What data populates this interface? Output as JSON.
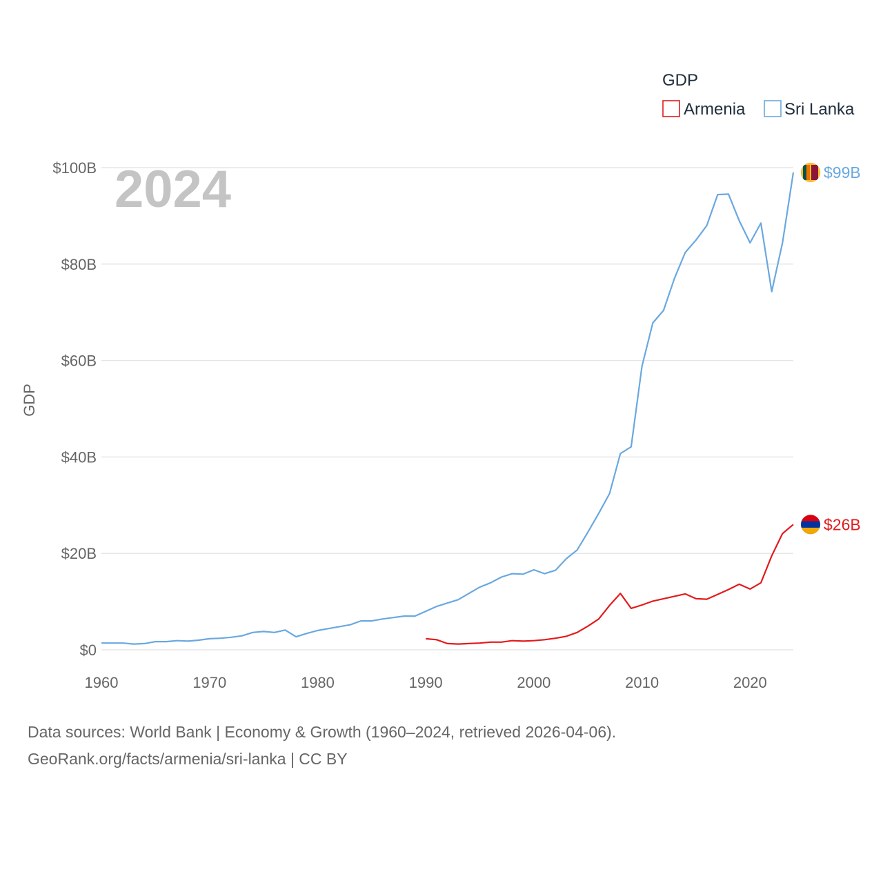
{
  "chart_data": {
    "type": "line",
    "ylabel": "GDP",
    "xlabel": "",
    "xlim": [
      1960,
      2024
    ],
    "ylim": [
      0,
      100
    ],
    "x_ticks": [
      1960,
      1970,
      1980,
      1990,
      2000,
      2010,
      2020
    ],
    "x_tick_labels": [
      "1960",
      "1970",
      "1980",
      "1990",
      "2000",
      "2010",
      "2020"
    ],
    "y_ticks": [
      0,
      20,
      40,
      60,
      80,
      100
    ],
    "y_tick_labels": [
      "$0",
      "$20B",
      "$40B",
      "$60B",
      "$80B",
      "$100B"
    ],
    "grid": true,
    "year_label": "2024",
    "legend": {
      "title": "GDP",
      "position": "top-right",
      "entries": [
        "Armenia",
        "Sri Lanka"
      ]
    },
    "series": [
      {
        "name": "Armenia",
        "color": "#e31a1c",
        "end_label": "$26B",
        "flag_colors": [
          "#d90012",
          "#0033a0",
          "#f2a800"
        ],
        "x": [
          1990,
          1991,
          1992,
          1993,
          1994,
          1995,
          1996,
          1997,
          1998,
          1999,
          2000,
          2001,
          2002,
          2003,
          2004,
          2005,
          2006,
          2007,
          2008,
          2009,
          2010,
          2011,
          2012,
          2013,
          2014,
          2015,
          2016,
          2017,
          2018,
          2019,
          2020,
          2021,
          2022,
          2023,
          2024
        ],
        "values": [
          2.3,
          2.1,
          1.3,
          1.2,
          1.3,
          1.4,
          1.6,
          1.6,
          1.9,
          1.8,
          1.9,
          2.1,
          2.4,
          2.8,
          3.6,
          4.9,
          6.4,
          9.2,
          11.7,
          8.6,
          9.3,
          10.1,
          10.6,
          11.1,
          11.6,
          10.6,
          10.5,
          11.5,
          12.5,
          13.6,
          12.6,
          13.9,
          19.5,
          24.1,
          26.0
        ]
      },
      {
        "name": "Sri Lanka",
        "color": "#69a8e0",
        "end_label": "$99B",
        "flag_colors": [
          "#eb7400",
          "#00534e",
          "#8d153a",
          "#ffbe29"
        ],
        "x": [
          1960,
          1961,
          1962,
          1963,
          1964,
          1965,
          1966,
          1967,
          1968,
          1969,
          1970,
          1971,
          1972,
          1973,
          1974,
          1975,
          1976,
          1977,
          1978,
          1979,
          1980,
          1981,
          1982,
          1983,
          1984,
          1985,
          1986,
          1987,
          1988,
          1989,
          1990,
          1991,
          1992,
          1993,
          1994,
          1995,
          1996,
          1997,
          1998,
          1999,
          2000,
          2001,
          2002,
          2003,
          2004,
          2005,
          2006,
          2007,
          2008,
          2009,
          2010,
          2011,
          2012,
          2013,
          2014,
          2015,
          2016,
          2017,
          2018,
          2019,
          2020,
          2021,
          2022,
          2023,
          2024
        ],
        "values": [
          1.4,
          1.4,
          1.4,
          1.2,
          1.3,
          1.7,
          1.7,
          1.9,
          1.8,
          2.0,
          2.3,
          2.4,
          2.6,
          2.9,
          3.6,
          3.8,
          3.6,
          4.1,
          2.7,
          3.4,
          4.0,
          4.4,
          4.8,
          5.2,
          6.0,
          6.0,
          6.4,
          6.7,
          7.0,
          7.0,
          8.0,
          9.0,
          9.7,
          10.4,
          11.7,
          13.0,
          13.9,
          15.1,
          15.8,
          15.7,
          16.6,
          15.8,
          16.5,
          18.9,
          20.7,
          24.4,
          28.3,
          32.4,
          40.7,
          42.1,
          58.8,
          67.8,
          70.4,
          77.0,
          82.4,
          85.0,
          88.0,
          94.4,
          94.5,
          89.0,
          84.4,
          88.5,
          74.3,
          84.4,
          99.0
        ]
      }
    ]
  },
  "footer": {
    "line1": "Data sources: World Bank | Economy & Growth (1960–2024, retrieved 2026-04-06).",
    "line2": "GeoRank.org/facts/armenia/sri-lanka | CC BY"
  }
}
